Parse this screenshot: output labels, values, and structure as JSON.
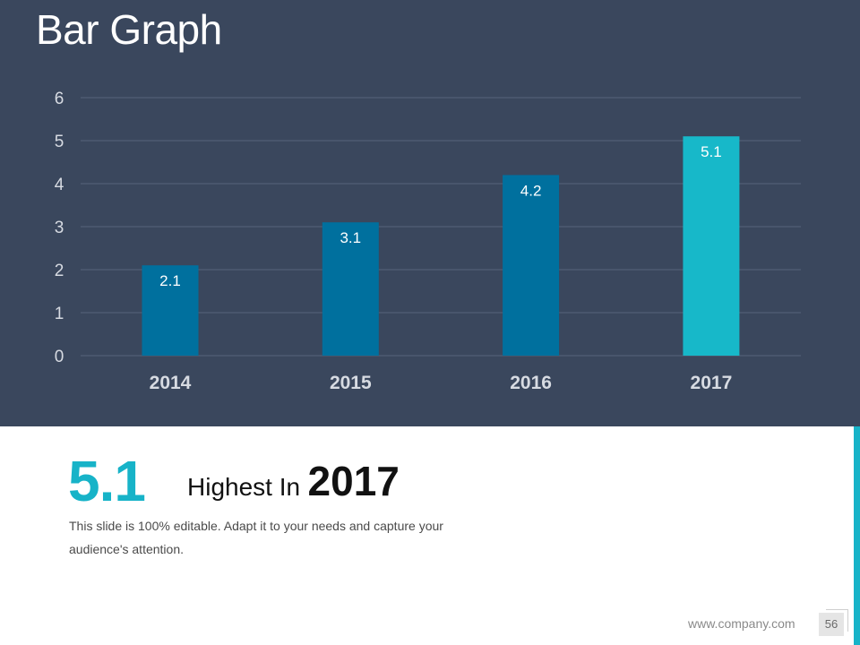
{
  "slide": {
    "title": "Bar Graph",
    "highlight_value": "5.1",
    "highlight_text": "Highest  In",
    "highlight_year": "2017",
    "description": "This slide is 100% editable. Adapt it to your needs and capture your audience's attention.",
    "footer_url": "www.company.com",
    "page_number": "56"
  },
  "colors": {
    "panel_background": "#3a475d",
    "bar_default": "#00709e",
    "bar_highlight": "#17b8c9",
    "accent": "#17b3c8",
    "gridline": "#56637a",
    "axis_text": "#d7dbe2"
  },
  "chart_data": {
    "type": "bar",
    "title": "Bar Graph",
    "categories": [
      "2014",
      "2015",
      "2016",
      "2017"
    ],
    "values": [
      2.1,
      3.1,
      4.2,
      5.1
    ],
    "data_labels": [
      "2.1",
      "3.1",
      "4.2",
      "5.1"
    ],
    "ylim": [
      0,
      6
    ],
    "yticks": [
      0,
      1,
      2,
      3,
      4,
      5,
      6
    ],
    "grid": true,
    "legend": "none",
    "xlabel": "",
    "ylabel": "",
    "highlight_category": "2017"
  }
}
